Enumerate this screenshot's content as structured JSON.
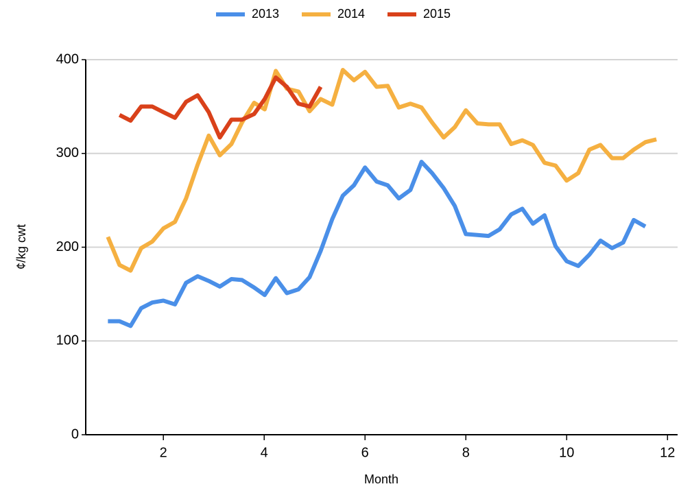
{
  "chart_data": {
    "type": "line",
    "xlabel": "Month",
    "ylabel": "¢/kg cwt",
    "x": [
      0.9,
      1.13,
      1.35,
      1.56,
      1.78,
      2.0,
      2.23,
      2.45,
      2.68,
      2.9,
      3.12,
      3.35,
      3.56,
      3.8,
      4.01,
      4.23,
      4.45,
      4.68,
      4.9,
      5.12,
      5.35,
      5.56,
      5.78,
      6.0,
      6.23,
      6.45,
      6.67,
      6.9,
      7.12,
      7.33,
      7.56,
      7.78,
      8.0,
      8.23,
      8.45,
      8.67,
      8.9,
      9.12,
      9.33,
      9.56,
      9.78,
      10.0,
      10.23,
      10.45,
      10.67,
      10.9,
      11.12,
      11.33,
      11.56,
      11.78
    ],
    "series": [
      {
        "name": "2013",
        "color": "#4a8fe8",
        "values": [
          121,
          121,
          116,
          135,
          141,
          143,
          139,
          162,
          169,
          164,
          158,
          166,
          165,
          157,
          149,
          167,
          151,
          155,
          168,
          196,
          230,
          255,
          266,
          285,
          270,
          266,
          252,
          261,
          291,
          279,
          263,
          244,
          214,
          213,
          212,
          219,
          235,
          241,
          225,
          234,
          201,
          185,
          180,
          192,
          207,
          199,
          205,
          229,
          222,
          null
        ]
      },
      {
        "name": "2014",
        "color": "#f5b041",
        "values": [
          211,
          181,
          175,
          199,
          206,
          220,
          227,
          252,
          288,
          319,
          298,
          310,
          333,
          354,
          347,
          388,
          369,
          366,
          345,
          358,
          352,
          389,
          378,
          387,
          371,
          372,
          349,
          353,
          349,
          333,
          317,
          328,
          346,
          332,
          331,
          331,
          310,
          314,
          309,
          290,
          287,
          271,
          279,
          304,
          309,
          295,
          295,
          304,
          312,
          315
        ]
      },
      {
        "name": "2015",
        "color": "#d9411a",
        "values": [
          null,
          341,
          335,
          350,
          350,
          344,
          338,
          355,
          362,
          344,
          317,
          336,
          336,
          342,
          358,
          381,
          371,
          353,
          350,
          371,
          null,
          null,
          null,
          null,
          null,
          null,
          null,
          null,
          null,
          null,
          null,
          null,
          null,
          null,
          null,
          null,
          null,
          null,
          null,
          null,
          null,
          null,
          null,
          null,
          null,
          null,
          null,
          null,
          null,
          null
        ]
      }
    ],
    "xlim": [
      0.46,
      12.2
    ],
    "xticks": [
      2,
      4,
      6,
      8,
      10,
      12
    ],
    "ylim": [
      0,
      400
    ],
    "yticks": [
      0,
      100,
      200,
      300,
      400
    ],
    "grid": true,
    "legend": "top"
  }
}
